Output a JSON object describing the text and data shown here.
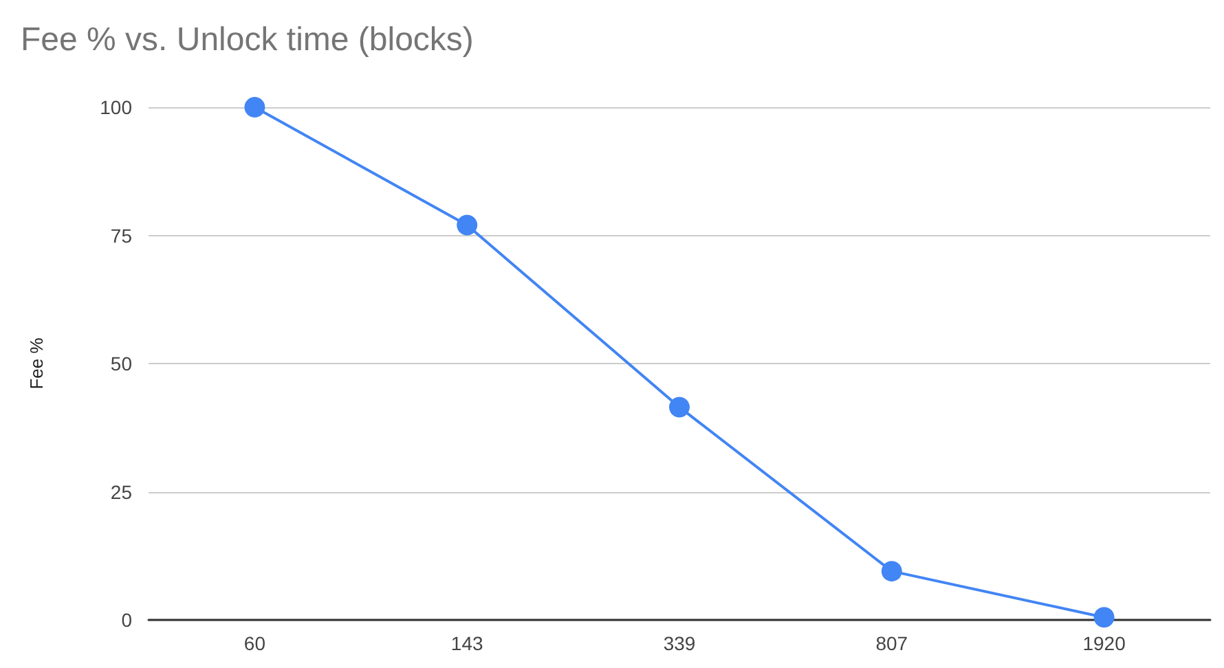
{
  "chart_data": {
    "type": "line",
    "title": "Fee % vs. Unlock time (blocks)",
    "ylabel": "Fee %",
    "categories": [
      "60",
      "143",
      "339",
      "807",
      "1920"
    ],
    "series": [
      {
        "color": "#4285f4",
        "values": [
          100,
          77,
          41.5,
          9.5,
          0.5
        ]
      }
    ],
    "ylim": [
      0,
      100
    ],
    "yticks": [
      0,
      25,
      50,
      75,
      100
    ],
    "grid": "y",
    "marker": "circle",
    "line_style": "solid"
  }
}
